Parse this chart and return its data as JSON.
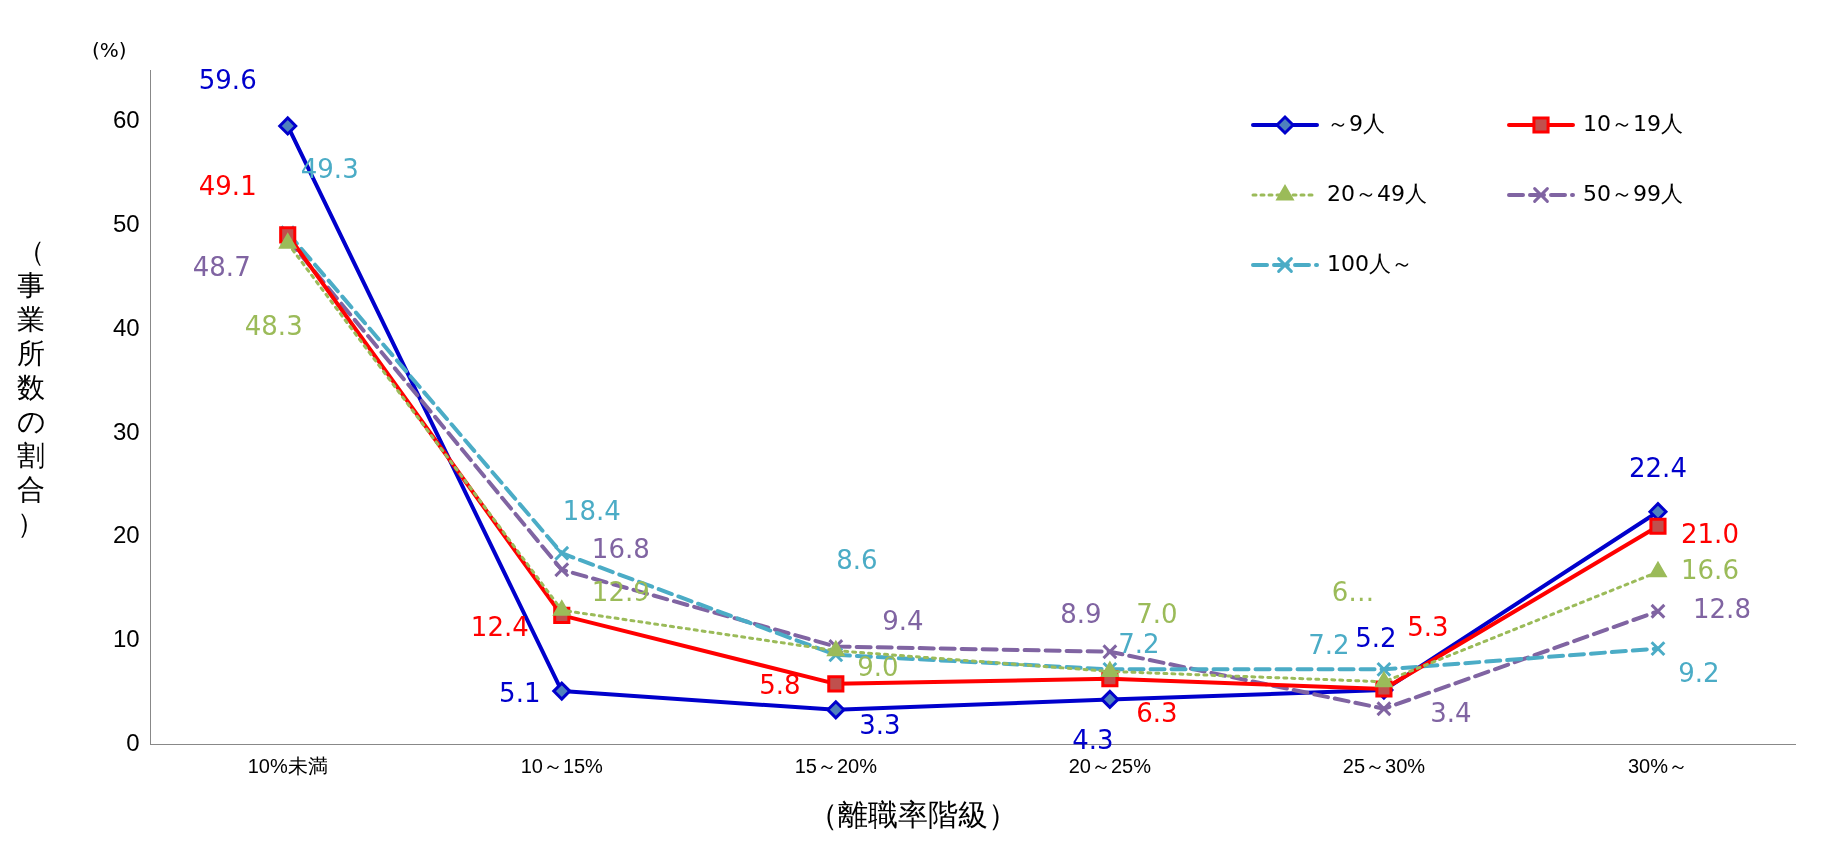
{
  "chart_data": {
    "type": "line",
    "xlabel": "（離職率階級）",
    "ylabel": "（事業所数の割合）",
    "annotations": [
      "(%)"
    ],
    "categories": [
      "10%未満",
      "10～15%",
      "15～20%",
      "20～25%",
      "25～30%",
      "30%～"
    ],
    "ylim": [
      0,
      65
    ],
    "yticks": [
      0,
      10,
      20,
      30,
      40,
      50,
      60
    ],
    "grid": false,
    "legend": "top right",
    "series": [
      {
        "name": "～9人",
        "color": "#0000cc",
        "marker": "diamond",
        "line_style": "solid",
        "values": [
          59.6,
          5.1,
          3.3,
          4.3,
          5.2,
          22.4
        ],
        "value_labels": [
          "59.6",
          "5.1",
          "3.3",
          "4.3",
          "5.2",
          "22.4"
        ]
      },
      {
        "name": "10～19人",
        "color": "#ff0000",
        "marker": "square",
        "line_style": "solid",
        "values": [
          49.1,
          12.4,
          5.8,
          6.3,
          5.3,
          21.0
        ],
        "value_labels": [
          "49.1",
          "12.4",
          "5.8",
          "6.3",
          "5.3",
          "21.0"
        ]
      },
      {
        "name": "20～49人",
        "color": "#9bbb59",
        "marker": "triangle",
        "line_style": "dotted",
        "values": [
          48.3,
          12.9,
          9.0,
          7.0,
          6.0,
          16.6
        ],
        "value_labels": [
          "48.3",
          "12.9",
          "9.0",
          "7.0",
          "6…",
          "16.6"
        ]
      },
      {
        "name": "50～99人",
        "color": "#8064a2",
        "marker": "cross",
        "line_style": "dashed",
        "values": [
          48.7,
          16.8,
          9.4,
          8.9,
          3.4,
          12.8
        ],
        "value_labels": [
          "48.7",
          "16.8",
          "9.4",
          "8.9",
          "3.4",
          "12.8"
        ]
      },
      {
        "name": "100人～",
        "color": "#4bacc6",
        "marker": "cross",
        "line_style": "dashed",
        "values": [
          49.3,
          18.4,
          8.6,
          7.2,
          7.2,
          9.2
        ],
        "value_labels": [
          "49.3",
          "18.4",
          "8.6",
          "7.2",
          "7.2",
          "9.2"
        ]
      }
    ]
  }
}
